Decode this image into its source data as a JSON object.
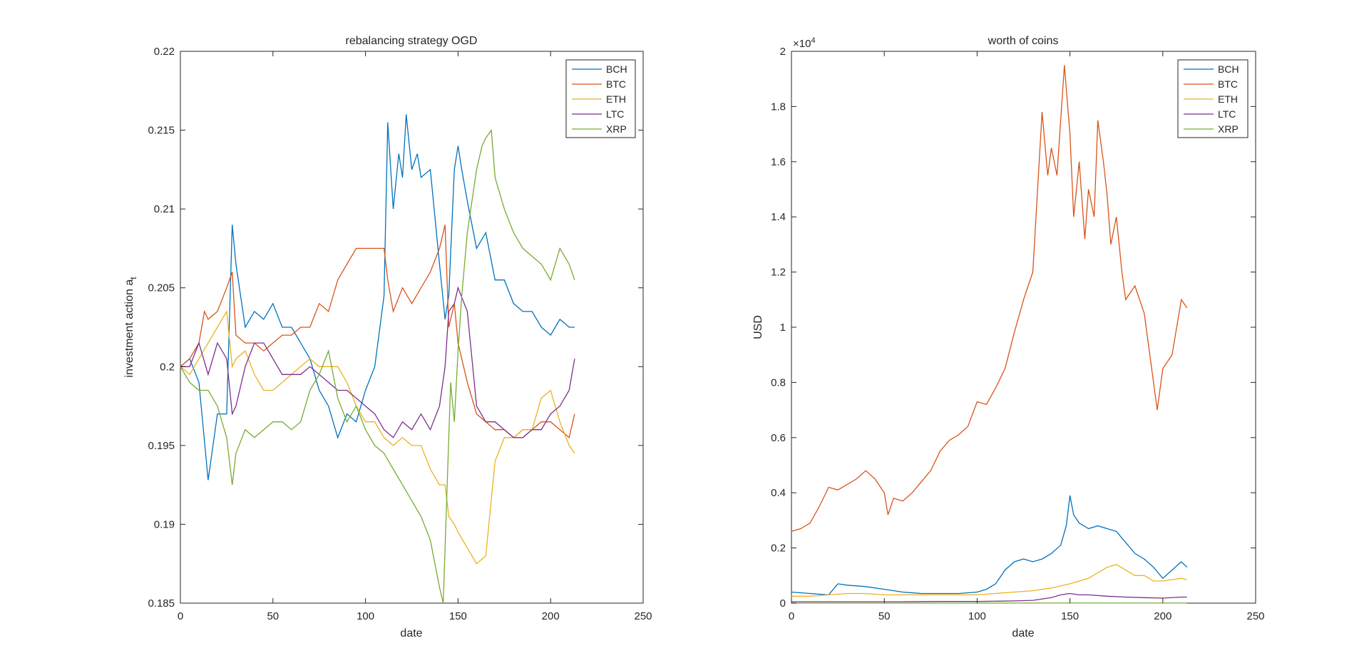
{
  "colors": {
    "BCH": "#0072BD",
    "BTC": "#D95319",
    "ETH": "#EDB120",
    "LTC": "#7E2F8E",
    "XRP": "#77AC30"
  },
  "chart_data": [
    {
      "type": "line",
      "title": "rebalancing strategy OGD",
      "xlabel": "date",
      "ylabel_main": "investment action a",
      "ylabel_sub": "t",
      "xlim": [
        0,
        250
      ],
      "ylim": [
        0.185,
        0.22
      ],
      "xticks": [
        0,
        50,
        100,
        150,
        200,
        250
      ],
      "xtick_labels": [
        "0",
        "50",
        "100",
        "150",
        "200",
        "250"
      ],
      "yticks": [
        0.185,
        0.19,
        0.195,
        0.2,
        0.205,
        0.21,
        0.215,
        0.22
      ],
      "ytick_labels": [
        "0.185",
        "0.19",
        "0.195",
        "0.2",
        "0.205",
        "0.21",
        "0.215",
        "0.22"
      ],
      "legend_position": "top-right",
      "series": [
        {
          "name": "BCH",
          "x": [
            0,
            5,
            10,
            15,
            20,
            25,
            28,
            30,
            35,
            40,
            45,
            50,
            55,
            60,
            65,
            70,
            75,
            80,
            85,
            90,
            95,
            100,
            105,
            110,
            112,
            115,
            118,
            120,
            122,
            125,
            128,
            130,
            135,
            140,
            143,
            145,
            148,
            150,
            152,
            155,
            160,
            165,
            170,
            175,
            180,
            185,
            190,
            195,
            200,
            205,
            210,
            213
          ],
          "y": [
            0.2,
            0.2005,
            0.199,
            0.1928,
            0.197,
            0.197,
            0.209,
            0.2065,
            0.2025,
            0.2035,
            0.203,
            0.204,
            0.2025,
            0.2025,
            0.2015,
            0.2005,
            0.1985,
            0.1975,
            0.1955,
            0.197,
            0.1965,
            0.1985,
            0.2,
            0.2045,
            0.2155,
            0.21,
            0.2135,
            0.212,
            0.216,
            0.2125,
            0.2135,
            0.212,
            0.2125,
            0.2065,
            0.203,
            0.2045,
            0.2125,
            0.214,
            0.2125,
            0.2105,
            0.2075,
            0.2085,
            0.2055,
            0.2055,
            0.204,
            0.2035,
            0.2035,
            0.2025,
            0.202,
            0.203,
            0.2025,
            0.2025
          ]
        },
        {
          "name": "BTC",
          "x": [
            0,
            5,
            10,
            13,
            15,
            20,
            25,
            28,
            30,
            35,
            40,
            45,
            50,
            55,
            60,
            65,
            70,
            75,
            80,
            85,
            90,
            95,
            100,
            105,
            110,
            112,
            115,
            120,
            125,
            130,
            135,
            140,
            143,
            145,
            148,
            150,
            155,
            160,
            165,
            170,
            175,
            180,
            185,
            190,
            195,
            200,
            205,
            210,
            213
          ],
          "y": [
            0.2,
            0.2005,
            0.2015,
            0.2035,
            0.203,
            0.2035,
            0.205,
            0.206,
            0.202,
            0.2015,
            0.2015,
            0.201,
            0.2015,
            0.202,
            0.202,
            0.2025,
            0.2025,
            0.204,
            0.2035,
            0.2055,
            0.2065,
            0.2075,
            0.2075,
            0.2075,
            0.2075,
            0.2055,
            0.2035,
            0.205,
            0.204,
            0.205,
            0.206,
            0.2075,
            0.209,
            0.2025,
            0.204,
            0.2015,
            0.199,
            0.197,
            0.1965,
            0.196,
            0.196,
            0.1955,
            0.196,
            0.196,
            0.1965,
            0.1965,
            0.196,
            0.1955,
            0.197
          ]
        },
        {
          "name": "ETH",
          "x": [
            0,
            5,
            10,
            15,
            20,
            25,
            28,
            30,
            35,
            40,
            45,
            50,
            55,
            60,
            65,
            70,
            75,
            80,
            85,
            90,
            95,
            100,
            105,
            110,
            115,
            120,
            125,
            130,
            135,
            140,
            143,
            145,
            148,
            150,
            155,
            160,
            165,
            170,
            175,
            180,
            185,
            190,
            195,
            200,
            205,
            210,
            213
          ],
          "y": [
            0.2,
            0.1995,
            0.2005,
            0.2015,
            0.2025,
            0.2035,
            0.2,
            0.2005,
            0.201,
            0.1995,
            0.1985,
            0.1985,
            0.199,
            0.1995,
            0.2,
            0.2005,
            0.2,
            0.2,
            0.2,
            0.199,
            0.1975,
            0.1965,
            0.1965,
            0.1955,
            0.195,
            0.1955,
            0.195,
            0.195,
            0.1935,
            0.1925,
            0.1925,
            0.1905,
            0.19,
            0.1895,
            0.1885,
            0.1875,
            0.188,
            0.194,
            0.1955,
            0.1955,
            0.196,
            0.196,
            0.198,
            0.1985,
            0.1965,
            0.195,
            0.1945
          ]
        },
        {
          "name": "LTC",
          "x": [
            0,
            5,
            10,
            15,
            20,
            25,
            28,
            30,
            35,
            40,
            45,
            50,
            55,
            60,
            65,
            70,
            75,
            80,
            85,
            90,
            95,
            100,
            105,
            110,
            115,
            120,
            125,
            130,
            135,
            140,
            143,
            145,
            148,
            150,
            155,
            160,
            165,
            170,
            175,
            180,
            185,
            190,
            195,
            200,
            205,
            210,
            213
          ],
          "y": [
            0.2,
            0.2,
            0.2015,
            0.1995,
            0.2015,
            0.2005,
            0.197,
            0.1975,
            0.2,
            0.2015,
            0.2015,
            0.2005,
            0.1995,
            0.1995,
            0.1995,
            0.2,
            0.1995,
            0.199,
            0.1985,
            0.1985,
            0.198,
            0.1975,
            0.197,
            0.196,
            0.1955,
            0.1965,
            0.196,
            0.197,
            0.196,
            0.1975,
            0.2,
            0.2035,
            0.204,
            0.205,
            0.2035,
            0.1975,
            0.1965,
            0.1965,
            0.196,
            0.1955,
            0.1955,
            0.196,
            0.196,
            0.197,
            0.1975,
            0.1985,
            0.2005
          ]
        },
        {
          "name": "XRP",
          "x": [
            0,
            5,
            10,
            15,
            20,
            25,
            28,
            30,
            35,
            40,
            45,
            50,
            55,
            60,
            65,
            70,
            75,
            80,
            85,
            90,
            95,
            100,
            105,
            110,
            115,
            120,
            125,
            130,
            135,
            140,
            142,
            144,
            146,
            148,
            150,
            152,
            155,
            160,
            163,
            165,
            168,
            170,
            175,
            180,
            185,
            190,
            195,
            200,
            205,
            210,
            213
          ],
          "y": [
            0.2,
            0.199,
            0.1985,
            0.1985,
            0.1975,
            0.1955,
            0.1925,
            0.1945,
            0.196,
            0.1955,
            0.196,
            0.1965,
            0.1965,
            0.196,
            0.1965,
            0.1985,
            0.1995,
            0.201,
            0.198,
            0.1965,
            0.1975,
            0.196,
            0.195,
            0.1945,
            0.1935,
            0.1925,
            0.1915,
            0.1905,
            0.189,
            0.186,
            0.185,
            0.192,
            0.199,
            0.1965,
            0.201,
            0.2045,
            0.2085,
            0.2125,
            0.214,
            0.2145,
            0.215,
            0.212,
            0.21,
            0.2085,
            0.2075,
            0.207,
            0.2065,
            0.2055,
            0.2075,
            0.2065,
            0.2055
          ]
        }
      ]
    },
    {
      "type": "line",
      "title": "worth of coins",
      "xlabel": "date",
      "ylabel": "USD",
      "exponent_label": "×10",
      "exponent_power": "4",
      "xlim": [
        0,
        250
      ],
      "ylim": [
        0,
        20000
      ],
      "xticks": [
        0,
        50,
        100,
        150,
        200,
        250
      ],
      "xtick_labels": [
        "0",
        "50",
        "100",
        "150",
        "200",
        "250"
      ],
      "yticks": [
        0,
        2000,
        4000,
        6000,
        8000,
        10000,
        12000,
        14000,
        16000,
        18000,
        20000
      ],
      "ytick_labels": [
        "0",
        "0.2",
        "0.4",
        "0.6",
        "0.8",
        "1",
        "1.2",
        "1.4",
        "1.6",
        "1.8",
        "2"
      ],
      "legend_position": "top-right",
      "series": [
        {
          "name": "BCH",
          "x": [
            0,
            10,
            20,
            25,
            30,
            40,
            50,
            60,
            70,
            80,
            90,
            100,
            105,
            110,
            115,
            120,
            125,
            130,
            135,
            140,
            145,
            148,
            150,
            152,
            155,
            160,
            165,
            170,
            175,
            180,
            185,
            190,
            195,
            200,
            205,
            210,
            213
          ],
          "y": [
            400,
            350,
            300,
            700,
            650,
            600,
            500,
            400,
            350,
            350,
            350,
            400,
            500,
            700,
            1200,
            1500,
            1600,
            1500,
            1600,
            1800,
            2100,
            2800,
            3900,
            3200,
            2900,
            2700,
            2800,
            2700,
            2600,
            2200,
            1800,
            1600,
            1300,
            900,
            1200,
            1500,
            1300
          ]
        },
        {
          "name": "BTC",
          "x": [
            0,
            5,
            10,
            15,
            20,
            25,
            30,
            35,
            40,
            45,
            50,
            52,
            55,
            60,
            65,
            70,
            75,
            80,
            85,
            90,
            95,
            100,
            105,
            110,
            115,
            120,
            125,
            130,
            135,
            138,
            140,
            143,
            145,
            147,
            150,
            152,
            155,
            158,
            160,
            163,
            165,
            168,
            170,
            172,
            175,
            178,
            180,
            185,
            190,
            195,
            197,
            200,
            205,
            210,
            213
          ],
          "y": [
            2600,
            2700,
            2900,
            3500,
            4200,
            4100,
            4300,
            4500,
            4800,
            4500,
            4000,
            3200,
            3800,
            3700,
            4000,
            4400,
            4800,
            5500,
            5900,
            6100,
            6400,
            7300,
            7200,
            7800,
            8500,
            9800,
            11000,
            12000,
            17800,
            15500,
            16500,
            15500,
            17500,
            19500,
            17000,
            14000,
            16000,
            13200,
            15000,
            14000,
            17500,
            16000,
            14800,
            13000,
            14000,
            12000,
            11000,
            11500,
            10500,
            8000,
            7000,
            8500,
            9000,
            11000,
            10700
          ]
        },
        {
          "name": "ETH",
          "x": [
            0,
            10,
            20,
            30,
            40,
            50,
            60,
            70,
            80,
            90,
            100,
            110,
            120,
            130,
            140,
            150,
            160,
            165,
            170,
            175,
            180,
            185,
            190,
            195,
            200,
            205,
            210,
            213
          ],
          "y": [
            250,
            250,
            300,
            350,
            350,
            300,
            300,
            300,
            300,
            300,
            300,
            350,
            400,
            450,
            550,
            700,
            900,
            1100,
            1300,
            1400,
            1200,
            1000,
            1000,
            800,
            800,
            850,
            900,
            850
          ]
        },
        {
          "name": "LTC",
          "x": [
            0,
            20,
            40,
            60,
            80,
            100,
            120,
            130,
            140,
            145,
            150,
            155,
            160,
            170,
            180,
            190,
            200,
            210,
            213
          ],
          "y": [
            50,
            50,
            50,
            50,
            60,
            60,
            80,
            100,
            200,
            300,
            350,
            300,
            300,
            250,
            220,
            200,
            180,
            220,
            220
          ]
        },
        {
          "name": "XRP",
          "x": [
            0,
            20,
            40,
            60,
            80,
            100,
            120,
            140,
            150,
            160,
            170,
            180,
            200,
            213
          ],
          "y": [
            1,
            1,
            1,
            1,
            1,
            1,
            2,
            2,
            3,
            2,
            2,
            2,
            2,
            2
          ]
        }
      ]
    }
  ]
}
